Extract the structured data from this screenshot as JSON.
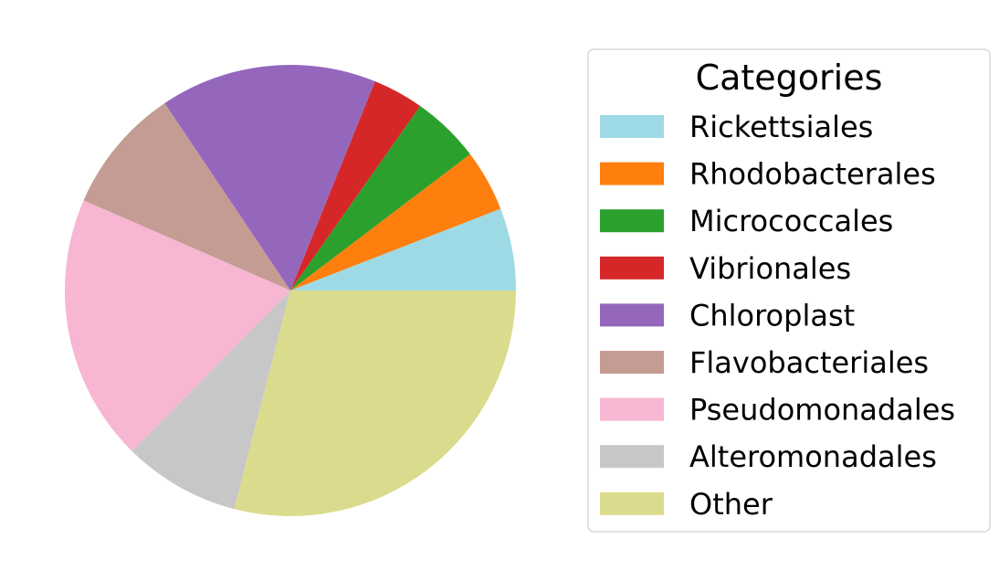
{
  "chart_data": {
    "type": "pie",
    "categories": [
      "Rickettsiales",
      "Rhodobacterales",
      "Micrococcales",
      "Vibrionales",
      "Chloroplast",
      "Flavobacteriales",
      "Pseudomonadales",
      "Alteromonadales",
      "Other"
    ],
    "values": [
      6,
      4.5,
      5,
      3.7,
      15.8,
      9.2,
      19.5,
      8.5,
      29.5
    ],
    "colors": [
      "#9edae5",
      "#ff7f0e",
      "#2ca02c",
      "#d62728",
      "#9467bd",
      "#c49c94",
      "#f7b6d2",
      "#c7c7c7",
      "#dbdb8d"
    ],
    "start_angle": 0,
    "direction": "counterclockwise",
    "legend": {
      "title": "Categories",
      "placement": "right"
    }
  }
}
